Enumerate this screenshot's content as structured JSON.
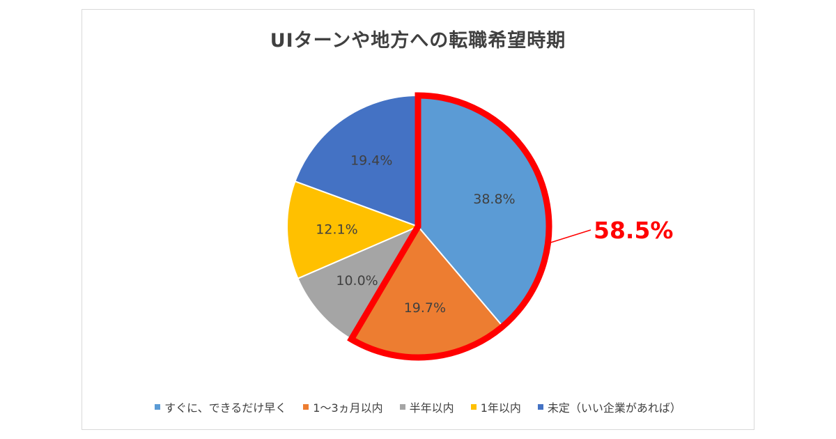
{
  "chart_data": {
    "type": "pie",
    "title": "UIターンや地方への転職希望時期",
    "slices": [
      {
        "name": "すぐに、できるだけ早く",
        "value": 38.8,
        "label": "38.8%",
        "color": "#5b9bd5"
      },
      {
        "name": "1～3ヵ月以内",
        "value": 19.7,
        "label": "19.7%",
        "color": "#ed7d31"
      },
      {
        "name": "半年以内",
        "value": 10.0,
        "label": "10.0%",
        "color": "#a5a5a5"
      },
      {
        "name": "1年以内",
        "value": 12.1,
        "label": "12.1%",
        "color": "#ffc000"
      },
      {
        "name": "未定（いい企業があれば）",
        "value": 19.4,
        "label": "19.4%",
        "color": "#4472c4"
      }
    ],
    "highlight": {
      "label": "58.5%",
      "color": "#ff0000",
      "slices": [
        0,
        1
      ]
    },
    "legend_position": "bottom"
  }
}
